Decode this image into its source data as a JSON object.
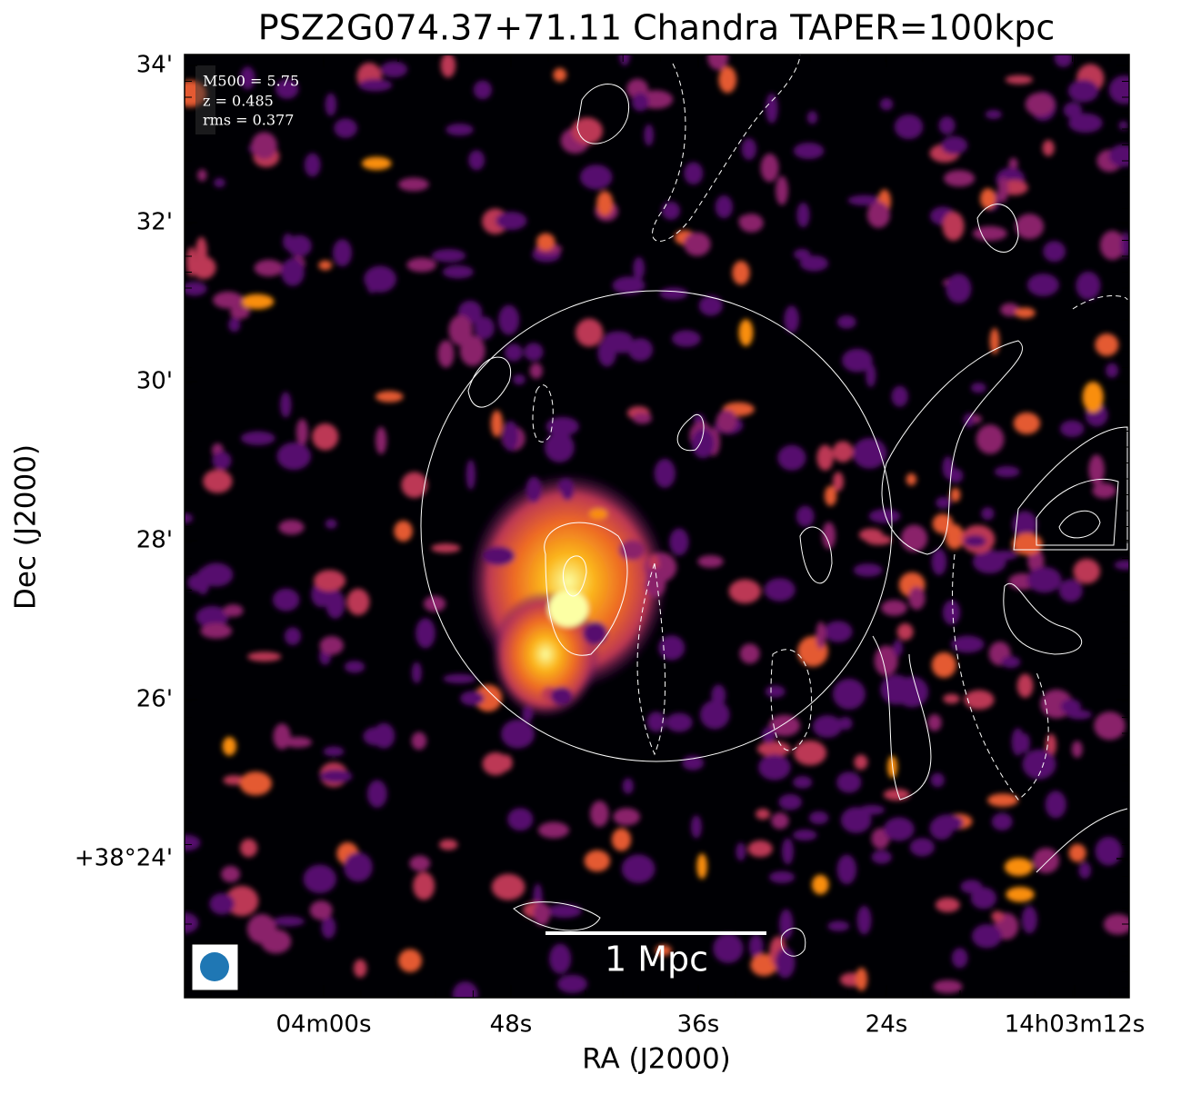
{
  "title": "PSZ2G074.37+71.11 Chandra TAPER=100kpc",
  "x_axis": {
    "label": "RA (J2000)",
    "ticks": [
      "04m00s",
      "48s",
      "36s",
      "24s",
      "14h03m12s"
    ]
  },
  "y_axis": {
    "label": "Dec (J2000)",
    "ticks": [
      "34'",
      "32'",
      "30'",
      "28'",
      "26'",
      "+38°24'"
    ]
  },
  "info": [
    "M500 = 5.75",
    "z = 0.485",
    "rms = 0.377"
  ],
  "scale_bar": "1 Mpc"
}
